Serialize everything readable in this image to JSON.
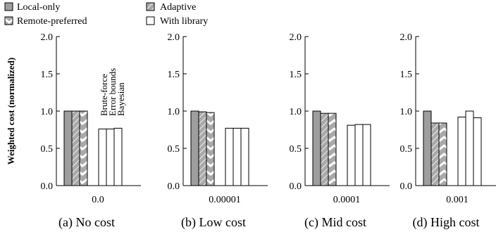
{
  "legend": {
    "items": [
      {
        "label": "Local-only",
        "style": "solid-gray"
      },
      {
        "label": "Adaptive",
        "style": "diag-gray"
      },
      {
        "label": "Remote-preferred",
        "style": "chevron"
      },
      {
        "label": "With library",
        "style": "white"
      }
    ]
  },
  "ylabel": "Weighted cost (normalized)",
  "bar_labels": [
    "Brute-force",
    "Error bounds",
    "Bayesian"
  ],
  "colors": {
    "solid_gray": "#9e9e9e",
    "pattern_gray": "#a9a9a9",
    "white": "#ffffff",
    "axis": "#000000"
  },
  "chart_data": [
    {
      "type": "bar",
      "caption": "(a) No cost",
      "category": "0.0",
      "ylim": [
        0,
        2.0
      ],
      "yticks": [
        "0.0",
        "0.5",
        "1.0",
        "1.5",
        "2.0"
      ],
      "series": [
        {
          "name": "Local-only",
          "values": [
            1.0,
            1.0,
            1.0
          ]
        },
        {
          "name": "With library",
          "values": [
            0.76,
            0.76,
            0.77
          ]
        }
      ]
    },
    {
      "type": "bar",
      "caption": "(b) Low cost",
      "category": "0.00001",
      "ylim": [
        0,
        2.0
      ],
      "yticks": [
        "0.0",
        "0.5",
        "1.0",
        "1.5",
        "2.0"
      ],
      "series": [
        {
          "name": "Local-only",
          "values": [
            1.0,
            0.99,
            0.98
          ]
        },
        {
          "name": "With library",
          "values": [
            0.77,
            0.77,
            0.77
          ]
        }
      ]
    },
    {
      "type": "bar",
      "caption": "(c) Mid cost",
      "category": "0.0001",
      "ylim": [
        0,
        2.0
      ],
      "yticks": [
        "0.0",
        "0.5",
        "1.0",
        "1.5",
        "2.0"
      ],
      "series": [
        {
          "name": "Local-only",
          "values": [
            1.0,
            0.97,
            0.97
          ]
        },
        {
          "name": "With library",
          "values": [
            0.81,
            0.82,
            0.82
          ]
        }
      ]
    },
    {
      "type": "bar",
      "caption": "(d) High cost",
      "category": "0.001",
      "ylim": [
        0,
        2.0
      ],
      "yticks": [
        "0.0",
        "0.5",
        "1.0",
        "1.5",
        "2.0"
      ],
      "series": [
        {
          "name": "Local-only",
          "values": [
            1.0,
            0.84,
            0.84
          ]
        },
        {
          "name": "With library",
          "values": [
            0.92,
            1.0,
            0.91
          ]
        }
      ]
    }
  ]
}
